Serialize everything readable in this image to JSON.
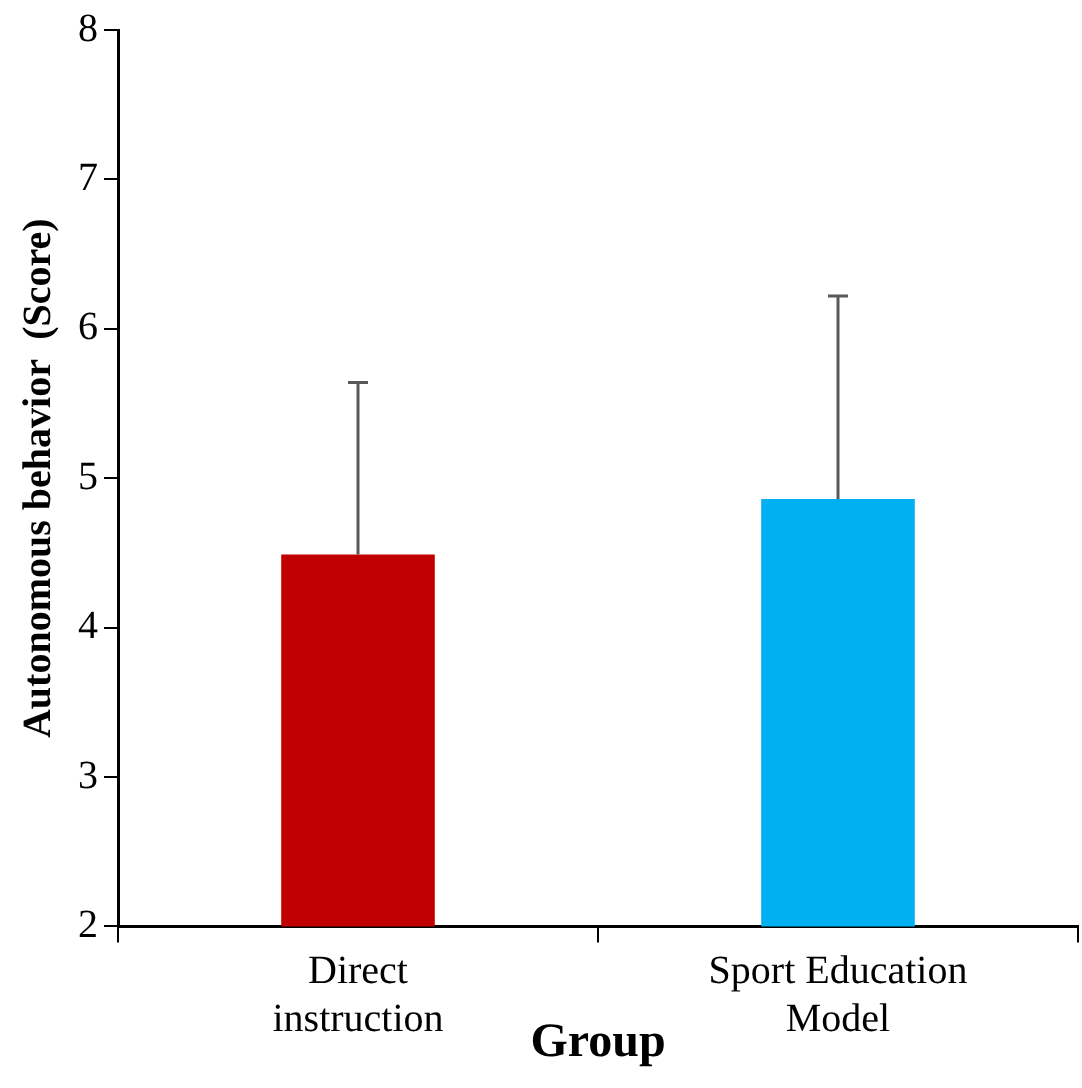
{
  "chart_data": {
    "type": "bar",
    "xlabel": "Group",
    "ylabel": "Autonomous behavior  (Score)",
    "categories": [
      "Direct instruction",
      "Sport Education Model"
    ],
    "values": [
      4.49,
      4.86
    ],
    "colors": [
      "#c00000",
      "#00b0f0"
    ],
    "errors": [
      [
        4.49,
        5.64
      ],
      [
        4.86,
        6.22
      ]
    ],
    "ylim": [
      2,
      8
    ],
    "yticks": [
      2,
      3,
      4,
      5,
      6,
      7,
      8
    ],
    "grid": false,
    "legend": false
  }
}
